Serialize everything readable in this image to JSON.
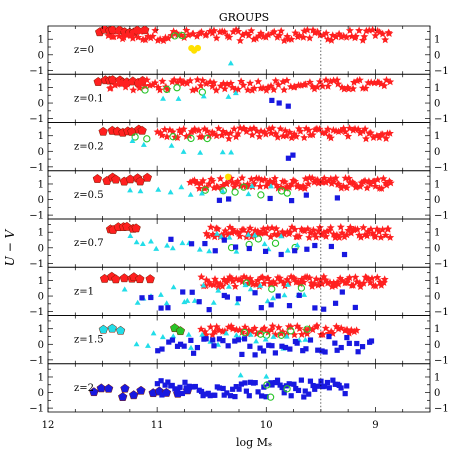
{
  "chart_data": {
    "type": "scatter",
    "title": "GROUPS",
    "xlabel": "log M*",
    "ylabel": "U − V",
    "xlim": [
      12,
      8.5
    ],
    "ylim": [
      -1.25,
      1.85
    ],
    "x_ticks": [
      "12",
      "11",
      "10",
      "9"
    ],
    "y_ticks": [
      "−1",
      "0",
      "1"
    ],
    "reference_x": 9.5,
    "panels": [
      {
        "label": "z=0",
        "clusters": [
          {
            "marker": "pentagon",
            "color": "#ff2020",
            "x0": 11.55,
            "x1": 11.1,
            "n": 10,
            "y0": 1.5,
            "dy": 0.12
          },
          {
            "marker": "star",
            "color": "#ff2020",
            "x0": 11.45,
            "x1": 8.85,
            "n": 110,
            "y0": 1.25,
            "dy": 0.35
          },
          {
            "marker": "circle",
            "color": "#28c428",
            "x0": 10.85,
            "x1": 10.75,
            "n": 2,
            "y0": 1.15,
            "dy": 0.1
          },
          {
            "marker": "circle",
            "color": "#ffe000",
            "x0": 10.7,
            "x1": 10.6,
            "n": 3,
            "y0": 0.35,
            "dy": 0.1
          },
          {
            "marker": "triangle",
            "color": "#22dde8",
            "x0": 10.35,
            "x1": 10.3,
            "n": 1,
            "y0": -0.6,
            "dy": 0.05
          }
        ]
      },
      {
        "label": "z=0.1",
        "clusters": [
          {
            "marker": "pentagon",
            "color": "#ff2020",
            "x0": 11.55,
            "x1": 11.1,
            "n": 10,
            "y0": 1.4,
            "dy": 0.12
          },
          {
            "marker": "star",
            "color": "#ff2020",
            "x0": 11.45,
            "x1": 8.85,
            "n": 105,
            "y0": 1.15,
            "dy": 0.35
          },
          {
            "marker": "circle",
            "color": "#28c428",
            "x0": 11.25,
            "x1": 10.4,
            "n": 4,
            "y0": 0.85,
            "dy": 0.15
          },
          {
            "marker": "triangle",
            "color": "#22dde8",
            "x0": 11.0,
            "x1": 10.1,
            "n": 5,
            "y0": 0.35,
            "dy": 0.4
          },
          {
            "marker": "square",
            "color": "#1818e0",
            "x0": 9.95,
            "x1": 9.75,
            "n": 3,
            "y0": 0.1,
            "dy": 0.35
          }
        ]
      },
      {
        "label": "z=0.2",
        "clusters": [
          {
            "marker": "pentagon",
            "color": "#ff2020",
            "x0": 11.5,
            "x1": 11.1,
            "n": 8,
            "y0": 1.3,
            "dy": 0.12
          },
          {
            "marker": "star",
            "color": "#ff2020",
            "x0": 11.0,
            "x1": 8.85,
            "n": 100,
            "y0": 1.15,
            "dy": 0.35
          },
          {
            "marker": "circle",
            "color": "#28c428",
            "x0": 11.3,
            "x1": 10.4,
            "n": 5,
            "y0": 0.9,
            "dy": 0.2
          },
          {
            "marker": "triangle",
            "color": "#22dde8",
            "x0": 11.3,
            "x1": 10.2,
            "n": 7,
            "y0": 0.3,
            "dy": 0.45
          },
          {
            "marker": "square",
            "color": "#1818e0",
            "x0": 9.85,
            "x1": 9.7,
            "n": 2,
            "y0": -0.3,
            "dy": 0.15
          }
        ]
      },
      {
        "label": "z=0.5",
        "clusters": [
          {
            "marker": "pentagon",
            "color": "#ff2020",
            "x0": 11.55,
            "x1": 11.05,
            "n": 9,
            "y0": 1.3,
            "dy": 0.15
          },
          {
            "marker": "star",
            "color": "#ff2020",
            "x0": 10.7,
            "x1": 8.85,
            "n": 110,
            "y0": 1.05,
            "dy": 0.35
          },
          {
            "marker": "circle",
            "color": "#28c428",
            "x0": 10.6,
            "x1": 9.7,
            "n": 7,
            "y0": 0.5,
            "dy": 0.35
          },
          {
            "marker": "circle",
            "color": "#ffe000",
            "x0": 10.4,
            "x1": 10.3,
            "n": 1,
            "y0": 1.4,
            "dy": 0.1
          },
          {
            "marker": "triangle",
            "color": "#22dde8",
            "x0": 11.3,
            "x1": 9.9,
            "n": 12,
            "y0": 0.5,
            "dy": 0.5
          },
          {
            "marker": "square",
            "color": "#1818e0",
            "x0": 10.6,
            "x1": 9.2,
            "n": 6,
            "y0": 0.0,
            "dy": 0.4
          }
        ]
      },
      {
        "label": "z=0.7",
        "clusters": [
          {
            "marker": "pentagon",
            "color": "#ff2020",
            "x0": 11.45,
            "x1": 11.15,
            "n": 7,
            "y0": 1.25,
            "dy": 0.12
          },
          {
            "marker": "star",
            "color": "#ff2020",
            "x0": 10.55,
            "x1": 8.85,
            "n": 100,
            "y0": 1.0,
            "dy": 0.35
          },
          {
            "marker": "circle",
            "color": "#28c428",
            "x0": 10.4,
            "x1": 9.6,
            "n": 5,
            "y0": 0.3,
            "dy": 0.3
          },
          {
            "marker": "triangle",
            "color": "#22dde8",
            "x0": 11.3,
            "x1": 9.7,
            "n": 22,
            "y0": 0.3,
            "dy": 0.6
          },
          {
            "marker": "square",
            "color": "#1818e0",
            "x0": 10.9,
            "x1": 9.2,
            "n": 14,
            "y0": 0.0,
            "dy": 0.55
          }
        ]
      },
      {
        "label": "z=1",
        "clusters": [
          {
            "marker": "pentagon",
            "color": "#ff2020",
            "x0": 11.5,
            "x1": 11.05,
            "n": 8,
            "y0": 1.15,
            "dy": 0.1
          },
          {
            "marker": "star",
            "color": "#ff2020",
            "x0": 10.6,
            "x1": 8.9,
            "n": 100,
            "y0": 0.95,
            "dy": 0.35
          },
          {
            "marker": "circle",
            "color": "#28c428",
            "x0": 10.2,
            "x1": 9.6,
            "n": 3,
            "y0": 0.6,
            "dy": 0.3
          },
          {
            "marker": "triangle",
            "color": "#22dde8",
            "x0": 11.3,
            "x1": 9.6,
            "n": 24,
            "y0": 0.1,
            "dy": 0.6
          },
          {
            "marker": "square",
            "color": "#1818e0",
            "x0": 11.2,
            "x1": 9.15,
            "n": 22,
            "y0": -0.3,
            "dy": 0.6
          }
        ]
      },
      {
        "label": "z=1.5",
        "clusters": [
          {
            "marker": "pentagon",
            "color": "#22dde8",
            "x0": 11.55,
            "x1": 11.25,
            "n": 3,
            "y0": 0.95,
            "dy": 0.1
          },
          {
            "marker": "pentagon",
            "color": "#28c428",
            "x0": 10.85,
            "x1": 10.75,
            "n": 2,
            "y0": 0.95,
            "dy": 0.1
          },
          {
            "marker": "star",
            "color": "#ff2020",
            "x0": 10.6,
            "x1": 9.15,
            "n": 60,
            "y0": 0.9,
            "dy": 0.3
          },
          {
            "marker": "circle",
            "color": "#28c428",
            "x0": 10.2,
            "x1": 9.6,
            "n": 6,
            "y0": 0.7,
            "dy": 0.3
          },
          {
            "marker": "triangle",
            "color": "#22dde8",
            "x0": 11.2,
            "x1": 9.6,
            "n": 22,
            "y0": 0.2,
            "dy": 0.55
          },
          {
            "marker": "square",
            "color": "#1818e0",
            "x0": 11.0,
            "x1": 9.0,
            "n": 50,
            "y0": -0.1,
            "dy": 0.6
          }
        ]
      },
      {
        "label": "z=2",
        "clusters": [
          {
            "marker": "pentagon",
            "color": "#1818e0",
            "x0": 11.6,
            "x1": 10.7,
            "n": 12,
            "y0": 0.0,
            "dy": 0.35
          },
          {
            "marker": "square",
            "color": "#1818e0",
            "x0": 11.0,
            "x1": 9.25,
            "n": 80,
            "y0": 0.25,
            "dy": 0.55
          },
          {
            "marker": "triangle",
            "color": "#22dde8",
            "x0": 10.35,
            "x1": 9.9,
            "n": 2,
            "y0": 0.9,
            "dy": 0.2
          },
          {
            "marker": "circle",
            "color": "#28c428",
            "x0": 10.1,
            "x1": 9.7,
            "n": 3,
            "y0": 0.2,
            "dy": 0.5
          }
        ]
      }
    ]
  }
}
